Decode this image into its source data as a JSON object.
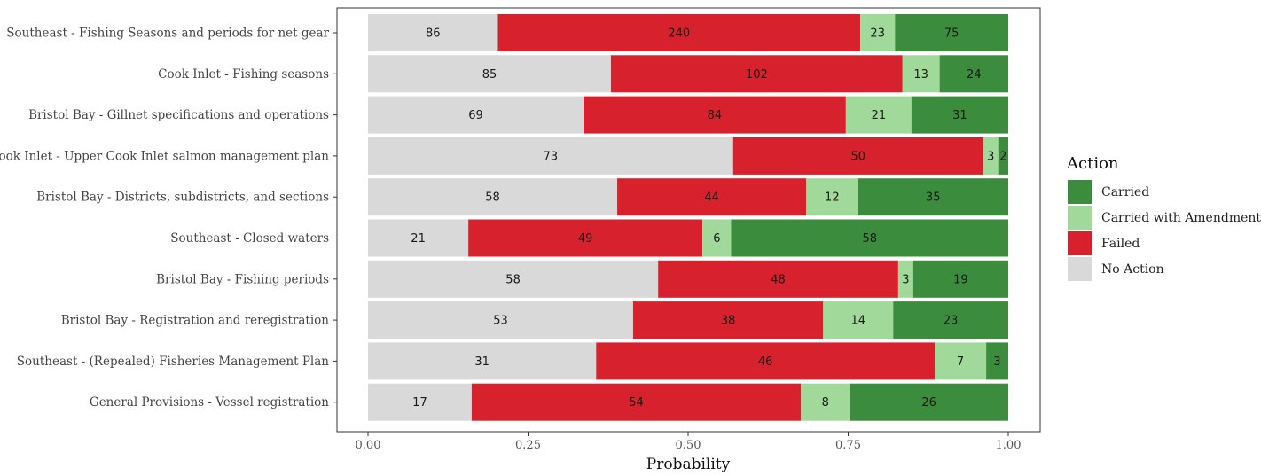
{
  "chart_data": {
    "type": "bar",
    "orientation": "horizontal",
    "stacked": "normalized",
    "xlabel": "Probability",
    "xlim": [
      0,
      1
    ],
    "x_ticks": [
      "0.00",
      "0.25",
      "0.50",
      "0.75",
      "1.00"
    ],
    "legend_title": "Action",
    "legend_position": "right",
    "categories": [
      "Southeast - Fishing Seasons and periods for net gear",
      "Cook Inlet - Fishing seasons",
      "Bristol Bay - Gillnet specifications and operations",
      "Cook Inlet - Upper Cook Inlet salmon management plan",
      "Bristol Bay - Districts, subdistricts, and sections",
      "Southeast - Closed waters",
      "Bristol Bay - Fishing periods",
      "Bristol Bay - Registration and reregistration",
      "Southeast - (Repealed) Fisheries Management Plan",
      "General Provisions - Vessel registration"
    ],
    "series": [
      {
        "name": "No Action",
        "color": "#d9d9d9",
        "values": [
          86,
          85,
          69,
          73,
          58,
          21,
          58,
          53,
          31,
          17
        ]
      },
      {
        "name": "Failed",
        "color": "#d7222d",
        "values": [
          240,
          102,
          84,
          50,
          44,
          49,
          48,
          38,
          46,
          54
        ]
      },
      {
        "name": "Carried with Amendment",
        "color": "#a1d99b",
        "values": [
          23,
          13,
          21,
          3,
          12,
          6,
          3,
          14,
          7,
          8
        ]
      },
      {
        "name": "Carried",
        "color": "#3b8c3c",
        "values": [
          75,
          24,
          31,
          2,
          35,
          58,
          19,
          23,
          3,
          26
        ]
      }
    ],
    "legend_order": [
      "Carried",
      "Carried with Amendment",
      "Failed",
      "No Action"
    ]
  }
}
